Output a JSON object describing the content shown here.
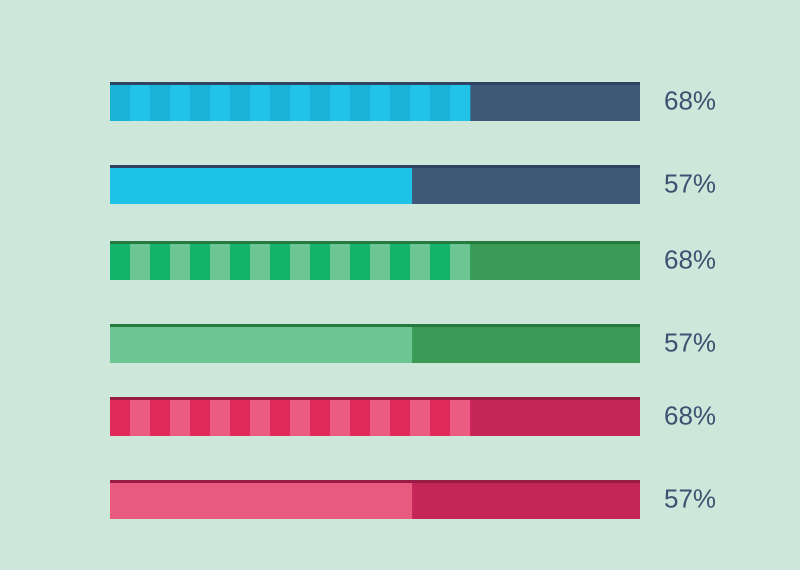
{
  "chart_data": {
    "type": "progress",
    "xlim": [
      0,
      100
    ],
    "values": [
      68,
      57,
      68,
      57,
      68,
      57
    ],
    "value_labels": [
      "68%",
      "57%",
      "68%",
      "57%",
      "68%",
      "57%"
    ],
    "colors": [
      "#1bb2d8",
      "#1ec2e6",
      "#12b46a",
      "#6cc593",
      "#e22a5a",
      "#e85a7e"
    ],
    "stripe_colors": [
      "#22c3e8",
      null,
      "#6cc593",
      null,
      "#eb5b82",
      null
    ],
    "track_colors": [
      "#3f5878",
      "#3f5878",
      "#3a9a56",
      "#3a9a56",
      "#c4265a",
      "#c4265a"
    ],
    "border_colors": [
      "#2d4463",
      "#2d4463",
      "#27793f",
      "#27793f",
      "#981c44",
      "#981c44"
    ]
  }
}
